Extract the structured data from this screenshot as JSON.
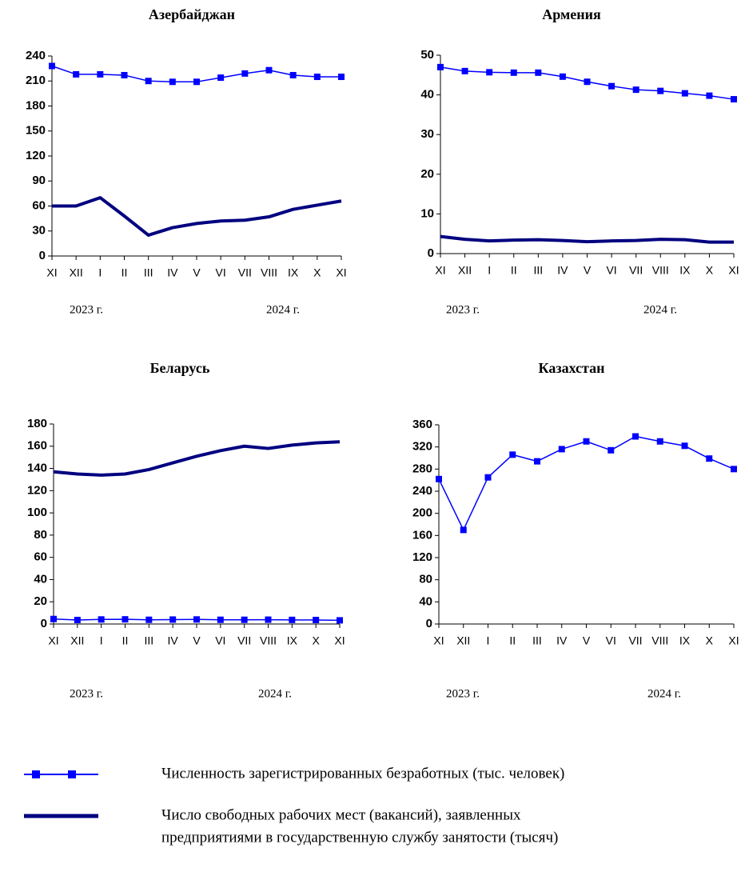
{
  "chart_data": [
    {
      "type": "line",
      "title": "Азербайджан",
      "categories": [
        "XI",
        "XII",
        "I",
        "II",
        "III",
        "IV",
        "V",
        "VI",
        "VII",
        "VIII",
        "IX",
        "X",
        "XI"
      ],
      "year_labels": [
        "2023 г.",
        "2024 г."
      ],
      "ylim": [
        0,
        240
      ],
      "yticks": [
        0,
        30,
        60,
        90,
        120,
        150,
        180,
        210,
        240
      ],
      "series": [
        {
          "color": "#0000ff",
          "marker": "square",
          "values": [
            228,
            218,
            218,
            217,
            210,
            209,
            209,
            214,
            219,
            223,
            217,
            215,
            215
          ]
        },
        {
          "color": "#000080",
          "marker": "none",
          "values": [
            60,
            60,
            70,
            48,
            25,
            34,
            39,
            42,
            43,
            47,
            56,
            61,
            66
          ]
        }
      ]
    },
    {
      "type": "line",
      "title": "Армения",
      "categories": [
        "XI",
        "XII",
        "I",
        "II",
        "III",
        "IV",
        "V",
        "VI",
        "VII",
        "VIII",
        "IX",
        "X",
        "XI"
      ],
      "year_labels": [
        "2023 г.",
        "2024 г."
      ],
      "ylim": [
        0,
        50
      ],
      "yticks": [
        0,
        10,
        20,
        30,
        40,
        50
      ],
      "series": [
        {
          "color": "#0000ff",
          "marker": "square",
          "values": [
            47,
            46,
            45.7,
            45.6,
            45.6,
            44.6,
            43.3,
            42.2,
            41.3,
            41,
            40.4,
            39.8,
            38.9
          ]
        },
        {
          "color": "#000080",
          "marker": "none",
          "values": [
            4.3,
            3.6,
            3.2,
            3.4,
            3.5,
            3.3,
            3.0,
            3.2,
            3.3,
            3.6,
            3.5,
            2.9,
            2.9
          ]
        }
      ]
    },
    {
      "type": "line",
      "title": "Беларусь",
      "categories": [
        "XI",
        "XII",
        "I",
        "II",
        "III",
        "IV",
        "V",
        "VI",
        "VII",
        "VIII",
        "IX",
        "X",
        "XI"
      ],
      "year_labels": [
        "2023 г.",
        "2024 г."
      ],
      "ylim": [
        0,
        180
      ],
      "yticks": [
        0,
        20,
        40,
        60,
        80,
        100,
        120,
        140,
        160,
        180
      ],
      "series": [
        {
          "color": "#0000ff",
          "marker": "square",
          "values": [
            4.5,
            3.6,
            4.1,
            4.2,
            3.8,
            4.0,
            4.1,
            3.8,
            3.8,
            3.9,
            3.7,
            3.6,
            3.3
          ]
        },
        {
          "color": "#000080",
          "marker": "none",
          "values": [
            137,
            135,
            134,
            135,
            139,
            145,
            151,
            156,
            160,
            158,
            161,
            163,
            164
          ]
        }
      ]
    },
    {
      "type": "line",
      "title": "Казахстан",
      "categories": [
        "XI",
        "XII",
        "I",
        "II",
        "III",
        "IV",
        "V",
        "VI",
        "VII",
        "VIII",
        "IX",
        "X",
        "XI"
      ],
      "year_labels": [
        "2023 г.",
        "2024 г."
      ],
      "ylim": [
        0,
        360
      ],
      "yticks": [
        0,
        40,
        80,
        120,
        160,
        200,
        240,
        280,
        320,
        360
      ],
      "series": [
        {
          "color": "#0000ff",
          "marker": "square",
          "values": [
            262,
            170,
            265,
            306,
            294,
            316,
            330,
            314,
            339,
            330,
            322,
            299,
            280
          ]
        }
      ]
    }
  ],
  "legend": [
    {
      "color": "#0000ff",
      "marker": "square",
      "lines": [
        "Численность зарегистрированных безработных (тыс. человек)"
      ]
    },
    {
      "color": "#000080",
      "marker": "none",
      "lines": [
        "Число свободных рабочих мест (вакансий), заявленных",
        "предприятиями в государственную службу занятости (тысяч)"
      ]
    }
  ]
}
